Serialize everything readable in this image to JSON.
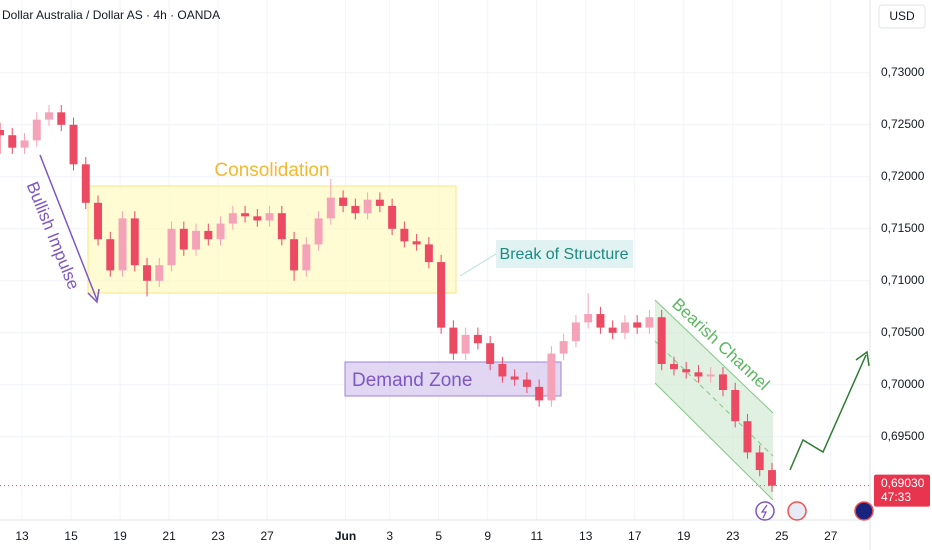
{
  "chart_data": {
    "type": "candlestick",
    "title": "Dollar Australia / Dollar AS · 4h · OANDA",
    "currency": "USD",
    "up_color": "#f5a3b8",
    "down_color": "#ec4a63",
    "x": [
      -0.9,
      -0.4,
      0.1,
      0.6,
      1.1,
      1.6,
      2.1,
      2.6,
      3.1,
      3.6,
      4.1,
      4.6,
      5.1,
      5.6,
      6.1,
      6.6,
      7.1,
      7.6,
      8.1,
      8.6,
      9.1,
      9.6,
      10.1,
      10.6,
      11.1,
      11.6,
      12.1,
      12.6,
      13.1,
      13.6,
      14.1,
      14.6,
      15.1,
      15.6,
      16.1,
      16.6,
      17.1,
      17.6,
      18.1,
      18.6,
      19.1,
      19.6,
      20.1,
      20.6,
      21.1,
      21.6,
      22.1,
      22.6,
      23.1,
      23.6,
      24.1,
      24.6,
      25.1,
      25.6,
      26.1,
      26.6,
      27.1,
      27.6,
      28.1,
      28.6,
      29.1,
      29.6,
      30.1,
      30.6
    ],
    "open": [
      0.7245,
      0.724,
      0.7228,
      0.7235,
      0.7255,
      0.7262,
      0.725,
      0.7212,
      0.7175,
      0.714,
      0.711,
      0.716,
      0.7115,
      0.71,
      0.7115,
      0.715,
      0.713,
      0.7148,
      0.714,
      0.7155,
      0.7165,
      0.7162,
      0.7158,
      0.7165,
      0.714,
      0.711,
      0.7135,
      0.716,
      0.718,
      0.7172,
      0.7165,
      0.7178,
      0.7172,
      0.715,
      0.7138,
      0.7135,
      0.7118,
      0.7055,
      0.703,
      0.7048,
      0.704,
      0.702,
      0.7008,
      0.7005,
      0.6998,
      0.6985,
      0.703,
      0.7042,
      0.706,
      0.7068,
      0.7055,
      0.705,
      0.706,
      0.7055,
      0.7065,
      0.702,
      0.7015,
      0.7012,
      0.7008,
      0.701,
      0.6995,
      0.6965,
      0.6935,
      0.6918
    ],
    "high": [
      0.7252,
      0.7247,
      0.7242,
      0.7262,
      0.7269,
      0.7269,
      0.7257,
      0.7219,
      0.7182,
      0.7147,
      0.7167,
      0.7167,
      0.7122,
      0.7122,
      0.7157,
      0.7157,
      0.7155,
      0.7155,
      0.7162,
      0.7172,
      0.7172,
      0.7169,
      0.7172,
      0.7172,
      0.7147,
      0.7142,
      0.7167,
      0.7198,
      0.7187,
      0.7179,
      0.7185,
      0.7185,
      0.7179,
      0.7157,
      0.7145,
      0.7142,
      0.7125,
      0.7062,
      0.7055,
      0.7055,
      0.7047,
      0.7027,
      0.7015,
      0.7012,
      0.7005,
      0.7037,
      0.7049,
      0.7067,
      0.7088,
      0.7075,
      0.7062,
      0.7067,
      0.7067,
      0.7072,
      0.7072,
      0.7027,
      0.7022,
      0.7019,
      0.7017,
      0.7017,
      0.7002,
      0.6972,
      0.6942,
      0.6925
    ],
    "low": [
      0.7222,
      0.7222,
      0.7222,
      0.7229,
      0.7249,
      0.7244,
      0.7206,
      0.7169,
      0.7134,
      0.7104,
      0.7104,
      0.7109,
      0.7085,
      0.7094,
      0.7109,
      0.7124,
      0.7124,
      0.7134,
      0.7134,
      0.7149,
      0.7156,
      0.7152,
      0.7152,
      0.7134,
      0.71,
      0.7104,
      0.7129,
      0.7154,
      0.7166,
      0.7159,
      0.7159,
      0.7166,
      0.7144,
      0.7132,
      0.7129,
      0.7112,
      0.7049,
      0.7024,
      0.7024,
      0.7034,
      0.7014,
      0.7002,
      0.6999,
      0.6992,
      0.6979,
      0.6979,
      0.7024,
      0.7036,
      0.7054,
      0.7049,
      0.7044,
      0.7044,
      0.7049,
      0.7049,
      0.7014,
      0.7009,
      0.7006,
      0.7002,
      0.7002,
      0.6989,
      0.6959,
      0.6929,
      0.6912,
      0.6897
    ],
    "close": [
      0.724,
      0.7228,
      0.7235,
      0.7255,
      0.7262,
      0.725,
      0.7212,
      0.7175,
      0.714,
      0.711,
      0.716,
      0.7115,
      0.71,
      0.7115,
      0.715,
      0.713,
      0.7148,
      0.714,
      0.7155,
      0.7165,
      0.7162,
      0.7158,
      0.7165,
      0.714,
      0.711,
      0.7135,
      0.716,
      0.718,
      0.7172,
      0.7165,
      0.7178,
      0.7172,
      0.715,
      0.7138,
      0.7135,
      0.7118,
      0.7055,
      0.703,
      0.7048,
      0.704,
      0.702,
      0.7008,
      0.7005,
      0.6998,
      0.6985,
      0.703,
      0.7042,
      0.706,
      0.7068,
      0.7055,
      0.705,
      0.706,
      0.7055,
      0.7065,
      0.702,
      0.7015,
      0.7012,
      0.7008,
      0.701,
      0.6995,
      0.6965,
      0.6935,
      0.6918,
      0.6903
    ],
    "xlim": [
      -0.9,
      34.6
    ],
    "xticks": [
      {
        "value": 0,
        "label": "13"
      },
      {
        "value": 2,
        "label": "15"
      },
      {
        "value": 4,
        "label": "19"
      },
      {
        "value": 6,
        "label": "21"
      },
      {
        "value": 8,
        "label": "23"
      },
      {
        "value": 10,
        "label": "27"
      },
      {
        "value": 13.2,
        "label": "Jun"
      },
      {
        "value": 15,
        "label": "3"
      },
      {
        "value": 17,
        "label": "5"
      },
      {
        "value": 19,
        "label": "9"
      },
      {
        "value": 21,
        "label": "11"
      },
      {
        "value": 23,
        "label": "13"
      },
      {
        "value": 25,
        "label": "17"
      },
      {
        "value": 27,
        "label": "19"
      },
      {
        "value": 29,
        "label": "23"
      },
      {
        "value": 31,
        "label": "25"
      },
      {
        "value": 33,
        "label": "27"
      }
    ],
    "ylim": [
      0.687,
      0.737
    ],
    "yticks": [
      {
        "value": 0.73,
        "label": "0,73000"
      },
      {
        "value": 0.725,
        "label": "0,72500"
      },
      {
        "value": 0.72,
        "label": "0,72000"
      },
      {
        "value": 0.715,
        "label": "0,71500"
      },
      {
        "value": 0.71,
        "label": "0,71000"
      },
      {
        "value": 0.705,
        "label": "0,70500"
      },
      {
        "value": 0.7,
        "label": "0,70000"
      },
      {
        "value": 0.695,
        "label": "0,69500"
      }
    ],
    "grid": true,
    "last_price": {
      "value": 0.6903,
      "label": "0,69030"
    },
    "countdown": "47:33",
    "annotations": [
      "Consolidation",
      "Break of Structure",
      "Demand Zone",
      "Bearish Channel",
      "Bullish Impulse"
    ]
  }
}
